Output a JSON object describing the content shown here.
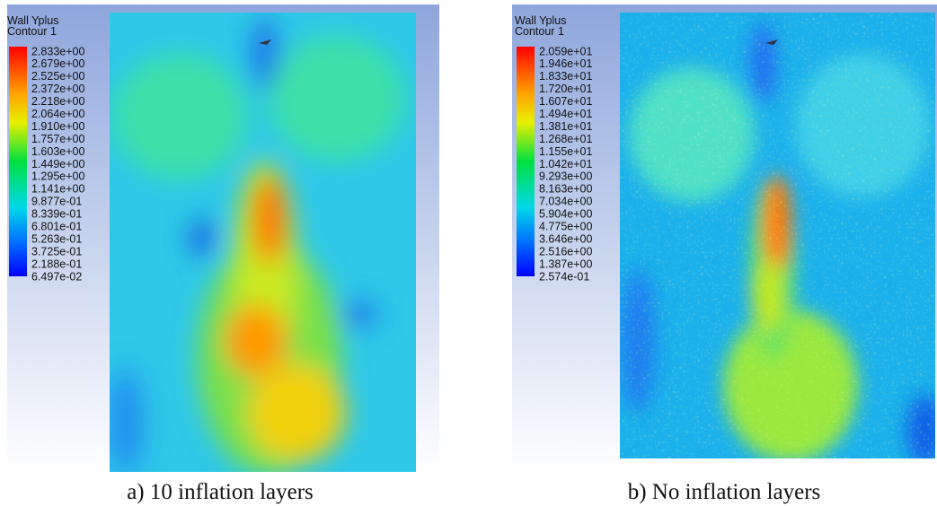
{
  "panels": [
    {
      "title": "Wall Yplus",
      "subtitle": "Contour 1",
      "legend": [
        "2.833e+00",
        "2.679e+00",
        "2.525e+00",
        "2.372e+00",
        "2.218e+00",
        "2.064e+00",
        "1.910e+00",
        "1.757e+00",
        "1.603e+00",
        "1.449e+00",
        "1.295e+00",
        "1.141e+00",
        "9.877e-01",
        "8.339e-01",
        "6.801e-01",
        "5.263e-01",
        "3.725e-01",
        "2.188e-01",
        "6.497e-02"
      ],
      "caption": "a) 10 inflation layers"
    },
    {
      "title": "Wall Yplus",
      "subtitle": "Contour 1",
      "legend": [
        "2.059e+01",
        "1.946e+01",
        "1.833e+01",
        "1.720e+01",
        "1.607e+01",
        "1.494e+01",
        "1.381e+01",
        "1.268e+01",
        "1.155e+01",
        "1.042e+01",
        "9.293e+00",
        "8.163e+00",
        "7.034e+00",
        "5.904e+00",
        "4.775e+00",
        "3.646e+00",
        "2.516e+00",
        "1.387e+00",
        "2.574e-01"
      ],
      "caption": "b) No inflation layers"
    }
  ]
}
